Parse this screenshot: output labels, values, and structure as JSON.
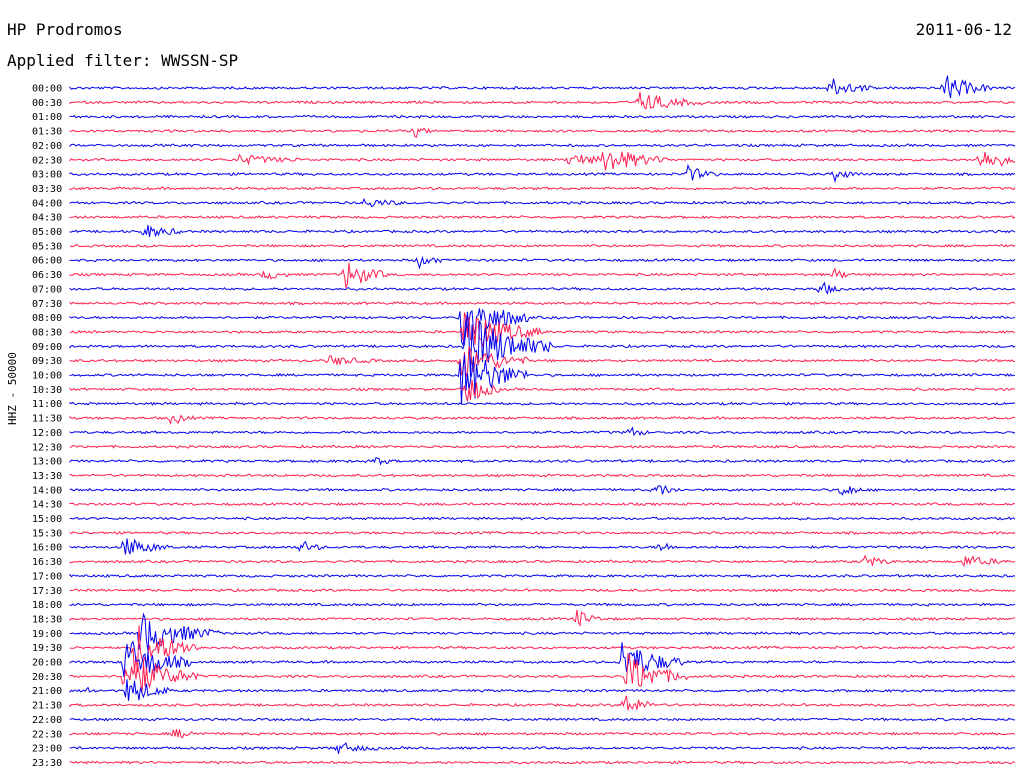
{
  "header": {
    "station": "HP Prodromos",
    "filter": "Applied filter: WWSSN-SP",
    "date": "2011-06-12"
  },
  "chart_data": {
    "type": "line",
    "title": "HP Prodromos",
    "subtitle": "Applied filter: WWSSN-SP",
    "ylabel": "HHZ - 50000",
    "xlabel": "",
    "date": "2011-06-12",
    "categories": [
      "00:00",
      "00:30",
      "01:00",
      "01:30",
      "02:00",
      "02:30",
      "03:00",
      "03:30",
      "04:00",
      "04:30",
      "05:00",
      "05:30",
      "06:00",
      "06:30",
      "07:00",
      "07:30",
      "08:00",
      "08:30",
      "09:00",
      "09:30",
      "10:00",
      "10:30",
      "11:00",
      "11:30",
      "12:00",
      "12:30",
      "13:00",
      "13:30",
      "14:00",
      "14:30",
      "15:00",
      "15:30",
      "16:00",
      "16:30",
      "17:00",
      "17:30",
      "18:00",
      "18:30",
      "19:00",
      "19:30",
      "20:00",
      "20:30",
      "21:00",
      "21:30",
      "22:00",
      "22:30",
      "23:00",
      "23:30"
    ],
    "grid": false,
    "colors": {
      "even_rows": "#0000ee",
      "odd_rows": "#ff1e50"
    }
  }
}
